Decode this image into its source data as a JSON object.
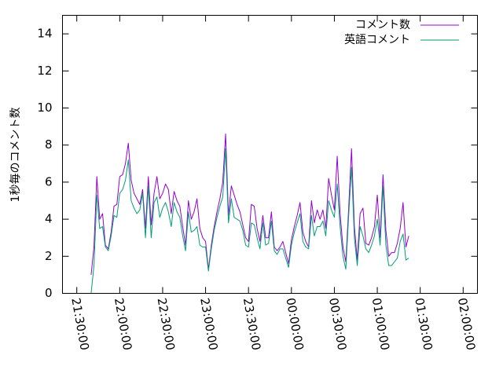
{
  "chart_data": {
    "type": "line",
    "ylabel": "1秒毎のコメント数",
    "ylim": [
      0,
      15
    ],
    "yticks": [
      "0",
      "2",
      "4",
      "6",
      "8",
      "10",
      "12",
      "14"
    ],
    "xlim": [
      "21:20:00",
      "02:10:00"
    ],
    "xticks": [
      "21:30:00",
      "22:00:00",
      "22:30:00",
      "23:00:00",
      "23:30:00",
      "00:00:00",
      "00:30:00",
      "01:00:00",
      "01:30:00",
      "02:00:00"
    ],
    "grid": false,
    "legend_position": "top-right",
    "series": [
      {
        "name": "コメント数",
        "color": "#9400d3",
        "points": [
          [
            "21:40:00",
            1.0
          ],
          [
            "21:42:00",
            2.5
          ],
          [
            "21:44:00",
            6.3
          ],
          [
            "21:46:00",
            4.0
          ],
          [
            "21:48:00",
            4.3
          ],
          [
            "21:50:00",
            2.6
          ],
          [
            "21:52:00",
            2.4
          ],
          [
            "21:54:00",
            3.3
          ],
          [
            "21:56:00",
            4.7
          ],
          [
            "21:58:00",
            4.8
          ],
          [
            "22:00:00",
            6.3
          ],
          [
            "22:02:00",
            6.4
          ],
          [
            "22:04:00",
            7.0
          ],
          [
            "22:06:00",
            8.1
          ],
          [
            "22:08:00",
            6.1
          ],
          [
            "22:10:00",
            5.4
          ],
          [
            "22:12:00",
            5.1
          ],
          [
            "22:14:00",
            4.8
          ],
          [
            "22:16:00",
            5.6
          ],
          [
            "22:18:00",
            3.5
          ],
          [
            "22:20:00",
            6.3
          ],
          [
            "22:22:00",
            3.7
          ],
          [
            "22:24:00",
            5.4
          ],
          [
            "22:26:00",
            6.3
          ],
          [
            "22:28:00",
            5.1
          ],
          [
            "22:30:00",
            5.4
          ],
          [
            "22:32:00",
            5.9
          ],
          [
            "22:34:00",
            5.6
          ],
          [
            "22:36:00",
            4.3
          ],
          [
            "22:38:00",
            5.5
          ],
          [
            "22:40:00",
            5.0
          ],
          [
            "22:42:00",
            4.7
          ],
          [
            "22:44:00",
            3.6
          ],
          [
            "22:46:00",
            2.6
          ],
          [
            "22:48:00",
            5.0
          ],
          [
            "22:50:00",
            4.0
          ],
          [
            "22:52:00",
            4.4
          ],
          [
            "22:54:00",
            5.1
          ],
          [
            "22:56:00",
            3.5
          ],
          [
            "22:58:00",
            3.0
          ],
          [
            "23:00:00",
            2.8
          ],
          [
            "23:02:00",
            1.3
          ],
          [
            "23:04:00",
            2.6
          ],
          [
            "23:06:00",
            3.6
          ],
          [
            "23:08:00",
            4.4
          ],
          [
            "23:10:00",
            5.1
          ],
          [
            "23:12:00",
            6.0
          ],
          [
            "23:14:00",
            8.6
          ],
          [
            "23:16:00",
            4.2
          ],
          [
            "23:18:00",
            5.8
          ],
          [
            "23:20:00",
            5.3
          ],
          [
            "23:22:00",
            4.8
          ],
          [
            "23:24:00",
            4.4
          ],
          [
            "23:26:00",
            3.7
          ],
          [
            "23:28:00",
            3.0
          ],
          [
            "23:30:00",
            2.8
          ],
          [
            "23:32:00",
            4.8
          ],
          [
            "23:34:00",
            4.7
          ],
          [
            "23:36:00",
            3.5
          ],
          [
            "23:38:00",
            2.8
          ],
          [
            "23:40:00",
            4.2
          ],
          [
            "23:42:00",
            3.0
          ],
          [
            "23:44:00",
            3.0
          ],
          [
            "23:46:00",
            4.4
          ],
          [
            "23:48:00",
            2.5
          ],
          [
            "23:50:00",
            2.3
          ],
          [
            "23:52:00",
            2.5
          ],
          [
            "23:54:00",
            2.8
          ],
          [
            "23:56:00",
            2.2
          ],
          [
            "23:58:00",
            1.6
          ],
          [
            "00:00:00",
            2.9
          ],
          [
            "00:02:00",
            3.6
          ],
          [
            "00:04:00",
            4.2
          ],
          [
            "00:06:00",
            4.9
          ],
          [
            "00:08:00",
            3.3
          ],
          [
            "00:10:00",
            2.8
          ],
          [
            "00:12:00",
            2.5
          ],
          [
            "00:14:00",
            5.0
          ],
          [
            "00:16:00",
            3.8
          ],
          [
            "00:18:00",
            4.5
          ],
          [
            "00:20:00",
            4.0
          ],
          [
            "00:22:00",
            4.5
          ],
          [
            "00:24:00",
            3.5
          ],
          [
            "00:26:00",
            6.2
          ],
          [
            "00:28:00",
            5.3
          ],
          [
            "00:30:00",
            4.5
          ],
          [
            "00:32:00",
            7.4
          ],
          [
            "00:34:00",
            4.3
          ],
          [
            "00:36:00",
            2.5
          ],
          [
            "00:38:00",
            1.7
          ],
          [
            "00:40:00",
            4.6
          ],
          [
            "00:42:00",
            7.8
          ],
          [
            "00:44:00",
            3.6
          ],
          [
            "00:46:00",
            1.8
          ],
          [
            "00:48:00",
            4.3
          ],
          [
            "00:50:00",
            4.6
          ],
          [
            "00:52:00",
            2.7
          ],
          [
            "00:54:00",
            2.6
          ],
          [
            "00:56:00",
            3.0
          ],
          [
            "00:58:00",
            3.6
          ],
          [
            "01:00:00",
            5.3
          ],
          [
            "01:02:00",
            3.0
          ],
          [
            "01:04:00",
            6.4
          ],
          [
            "01:06:00",
            3.4
          ],
          [
            "01:08:00",
            2.0
          ],
          [
            "01:10:00",
            2.2
          ],
          [
            "01:12:00",
            2.2
          ],
          [
            "01:14:00",
            2.7
          ],
          [
            "01:16:00",
            3.5
          ],
          [
            "01:18:00",
            4.9
          ],
          [
            "01:20:00",
            2.5
          ],
          [
            "01:22:00",
            3.1
          ]
        ]
      },
      {
        "name": "英語コメント",
        "color": "#009e73",
        "points": [
          [
            "21:40:00",
            0.0
          ],
          [
            "21:42:00",
            1.5
          ],
          [
            "21:44:00",
            5.3
          ],
          [
            "21:46:00",
            3.5
          ],
          [
            "21:48:00",
            3.6
          ],
          [
            "21:50:00",
            2.5
          ],
          [
            "21:52:00",
            2.3
          ],
          [
            "21:54:00",
            3.1
          ],
          [
            "21:56:00",
            4.2
          ],
          [
            "21:58:00",
            4.1
          ],
          [
            "22:00:00",
            5.4
          ],
          [
            "22:02:00",
            5.6
          ],
          [
            "22:04:00",
            6.1
          ],
          [
            "22:06:00",
            7.2
          ],
          [
            "22:08:00",
            5.0
          ],
          [
            "22:10:00",
            4.6
          ],
          [
            "22:12:00",
            4.3
          ],
          [
            "22:14:00",
            4.5
          ],
          [
            "22:16:00",
            5.4
          ],
          [
            "22:18:00",
            3.0
          ],
          [
            "22:20:00",
            5.8
          ],
          [
            "22:22:00",
            3.0
          ],
          [
            "22:24:00",
            4.9
          ],
          [
            "22:26:00",
            5.2
          ],
          [
            "22:28:00",
            4.1
          ],
          [
            "22:30:00",
            4.6
          ],
          [
            "22:32:00",
            4.9
          ],
          [
            "22:34:00",
            4.4
          ],
          [
            "22:36:00",
            3.6
          ],
          [
            "22:38:00",
            4.9
          ],
          [
            "22:40:00",
            4.4
          ],
          [
            "22:42:00",
            4.1
          ],
          [
            "22:44:00",
            3.1
          ],
          [
            "22:46:00",
            2.3
          ],
          [
            "22:48:00",
            4.4
          ],
          [
            "22:50:00",
            3.3
          ],
          [
            "22:52:00",
            3.4
          ],
          [
            "22:54:00",
            3.6
          ],
          [
            "22:56:00",
            2.6
          ],
          [
            "22:58:00",
            2.5
          ],
          [
            "23:00:00",
            2.5
          ],
          [
            "23:02:00",
            1.2
          ],
          [
            "23:04:00",
            2.4
          ],
          [
            "23:06:00",
            3.4
          ],
          [
            "23:08:00",
            4.1
          ],
          [
            "23:10:00",
            4.7
          ],
          [
            "23:12:00",
            5.2
          ],
          [
            "23:14:00",
            7.8
          ],
          [
            "23:16:00",
            3.8
          ],
          [
            "23:18:00",
            5.1
          ],
          [
            "23:20:00",
            4.1
          ],
          [
            "23:22:00",
            4.0
          ],
          [
            "23:24:00",
            3.9
          ],
          [
            "23:26:00",
            3.4
          ],
          [
            "23:28:00",
            2.6
          ],
          [
            "23:30:00",
            2.5
          ],
          [
            "23:32:00",
            3.8
          ],
          [
            "23:34:00",
            3.7
          ],
          [
            "23:36:00",
            3.0
          ],
          [
            "23:38:00",
            2.4
          ],
          [
            "23:40:00",
            3.8
          ],
          [
            "23:42:00",
            2.6
          ],
          [
            "23:44:00",
            2.7
          ],
          [
            "23:46:00",
            3.9
          ],
          [
            "23:48:00",
            2.3
          ],
          [
            "23:50:00",
            2.1
          ],
          [
            "23:52:00",
            2.4
          ],
          [
            "23:54:00",
            2.4
          ],
          [
            "23:56:00",
            1.9
          ],
          [
            "23:58:00",
            1.4
          ],
          [
            "00:00:00",
            2.6
          ],
          [
            "00:02:00",
            3.3
          ],
          [
            "00:04:00",
            3.8
          ],
          [
            "00:06:00",
            4.3
          ],
          [
            "00:08:00",
            2.8
          ],
          [
            "00:10:00",
            2.5
          ],
          [
            "00:12:00",
            2.4
          ],
          [
            "00:14:00",
            4.2
          ],
          [
            "00:16:00",
            3.1
          ],
          [
            "00:18:00",
            3.6
          ],
          [
            "00:20:00",
            3.6
          ],
          [
            "00:22:00",
            3.9
          ],
          [
            "00:24:00",
            3.1
          ],
          [
            "00:26:00",
            5.0
          ],
          [
            "00:28:00",
            4.5
          ],
          [
            "00:30:00",
            4.1
          ],
          [
            "00:32:00",
            5.9
          ],
          [
            "00:34:00",
            3.6
          ],
          [
            "00:36:00",
            2.0
          ],
          [
            "00:38:00",
            1.3
          ],
          [
            "00:40:00",
            4.2
          ],
          [
            "00:42:00",
            6.8
          ],
          [
            "00:44:00",
            3.0
          ],
          [
            "00:46:00",
            1.5
          ],
          [
            "00:48:00",
            3.6
          ],
          [
            "00:50:00",
            3.1
          ],
          [
            "00:52:00",
            2.4
          ],
          [
            "00:54:00",
            2.2
          ],
          [
            "00:56:00",
            2.6
          ],
          [
            "00:58:00",
            3.1
          ],
          [
            "01:00:00",
            4.0
          ],
          [
            "01:02:00",
            2.6
          ],
          [
            "01:04:00",
            5.8
          ],
          [
            "01:06:00",
            2.6
          ],
          [
            "01:08:00",
            1.5
          ],
          [
            "01:10:00",
            1.5
          ],
          [
            "01:12:00",
            1.7
          ],
          [
            "01:14:00",
            1.9
          ],
          [
            "01:16:00",
            2.8
          ],
          [
            "01:18:00",
            3.2
          ],
          [
            "01:20:00",
            1.8
          ],
          [
            "01:22:00",
            1.9
          ]
        ]
      }
    ]
  }
}
